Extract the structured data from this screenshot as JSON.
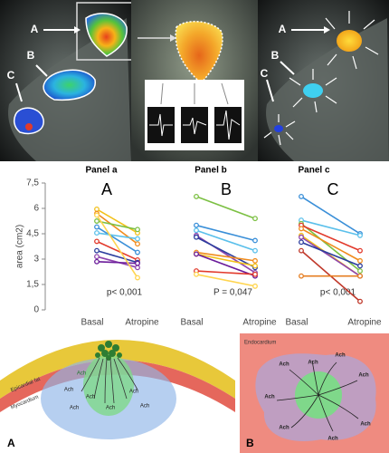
{
  "figure_top": {
    "left_labels": [
      "A",
      "B",
      "C"
    ],
    "right_labels": [
      "A",
      "B",
      "C"
    ]
  },
  "chart_data": [
    {
      "type": "line",
      "title": "Panel a",
      "label": "A",
      "annotation": "p< 0,001",
      "ylabel": "area (cm2)",
      "categories": [
        "Basal",
        "Atropine"
      ],
      "ylim": [
        0,
        7.5
      ],
      "yticks": [
        0,
        {
          "value": 1.5,
          "label": "1,5"
        },
        3,
        {
          "value": 4.5,
          "label": "4,5"
        },
        6,
        {
          "value": 7.5,
          "label": "7,5"
        }
      ],
      "series": [
        {
          "color": "#f2c01a",
          "values": [
            5.95,
            4.55
          ]
        },
        {
          "color": "#f08c1e",
          "values": [
            5.7,
            3.9
          ]
        },
        {
          "color": "#7cc043",
          "values": [
            5.25,
            4.75
          ]
        },
        {
          "color": "#3a8fd8",
          "values": [
            4.9,
            3.4
          ]
        },
        {
          "color": "#5bc0eb",
          "values": [
            4.55,
            4.2
          ]
        },
        {
          "color": "#e23a2c",
          "values": [
            4.05,
            2.95
          ]
        },
        {
          "color": "#2c3e9e",
          "values": [
            3.5,
            2.8
          ]
        },
        {
          "color": "#8e44ad",
          "values": [
            3.15,
            2.5
          ]
        },
        {
          "color": "#6a1b9a",
          "values": [
            2.85,
            2.75
          ]
        },
        {
          "color": "#ffd54f",
          "values": [
            5.6,
            1.9
          ]
        }
      ]
    },
    {
      "type": "line",
      "title": "Panel b",
      "label": "B",
      "annotation": "P = 0,047",
      "categories": [
        "Basal",
        "Atropine"
      ],
      "ylim": [
        0,
        7.5
      ],
      "series": [
        {
          "color": "#7cc043",
          "values": [
            6.7,
            5.4
          ]
        },
        {
          "color": "#3a8fd8",
          "values": [
            5.0,
            4.1
          ]
        },
        {
          "color": "#5bc0eb",
          "values": [
            4.7,
            3.5
          ]
        },
        {
          "color": "#8e44ad",
          "values": [
            4.4,
            2.2
          ]
        },
        {
          "color": "#2c3e9e",
          "values": [
            4.3,
            2.5
          ]
        },
        {
          "color": "#f08c1e",
          "values": [
            3.4,
            2.9
          ]
        },
        {
          "color": "#f2c01a",
          "values": [
            3.3,
            2.6
          ]
        },
        {
          "color": "#6a1b9a",
          "values": [
            3.3,
            2.0
          ]
        },
        {
          "color": "#e23a2c",
          "values": [
            2.3,
            2.1
          ]
        },
        {
          "color": "#ffd54f",
          "values": [
            2.1,
            1.4
          ]
        }
      ]
    },
    {
      "type": "line",
      "title": "Panel c",
      "label": "C",
      "annotation": "p< 0,001",
      "categories": [
        "Basal",
        "Atropine"
      ],
      "ylim": [
        0,
        7.5
      ],
      "series": [
        {
          "color": "#3a8fd8",
          "values": [
            6.7,
            4.5
          ]
        },
        {
          "color": "#5bc0eb",
          "values": [
            5.3,
            4.4
          ]
        },
        {
          "color": "#7cc043",
          "values": [
            5.1,
            2.3
          ]
        },
        {
          "color": "#e23a2c",
          "values": [
            5.0,
            3.5
          ]
        },
        {
          "color": "#f08c1e",
          "values": [
            4.8,
            2.9
          ]
        },
        {
          "color": "#f2c01a",
          "values": [
            4.4,
            2.0
          ]
        },
        {
          "color": "#8e44ad",
          "values": [
            4.3,
            2.0
          ]
        },
        {
          "color": "#2c3e9e",
          "values": [
            4.0,
            2.6
          ]
        },
        {
          "color": "#c0392b",
          "values": [
            3.5,
            0.5
          ]
        },
        {
          "color": "#e67e22",
          "values": [
            2.0,
            2.0
          ]
        }
      ]
    }
  ],
  "diagram_a": {
    "fat_label": "Epicardial fat",
    "myocardium_label": "Myocardium",
    "ach_labels": [
      "Ach",
      "Ach",
      "Ach",
      "Ach",
      "Ach",
      "Ach",
      "Ach"
    ],
    "panel_label": "A"
  },
  "diagram_b": {
    "endocardium_label": "Endocardium",
    "ach_labels": [
      "Ach",
      "Ach",
      "Ach",
      "Ach",
      "Ach",
      "Ach",
      "Ach",
      "Ach"
    ],
    "panel_label": "B"
  }
}
